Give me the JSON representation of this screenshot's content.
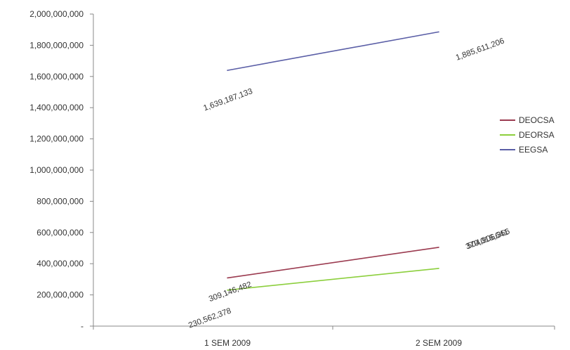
{
  "chart_data": {
    "type": "line",
    "categories": [
      "1 SEM 2009",
      "2 SEM 2009"
    ],
    "series": [
      {
        "name": "DEOCSA",
        "values": [
          309146482,
          504906356
        ],
        "labels": [
          "309,146,482",
          "504,906,356"
        ],
        "color": "#9b3b50"
      },
      {
        "name": "DEORSA",
        "values": [
          230562378,
          370016641
        ],
        "labels": [
          "230,562,378",
          "370,016,641"
        ],
        "color": "#8ccf3d"
      },
      {
        "name": "EEGSA",
        "values": [
          1639187133,
          1885611206
        ],
        "labels": [
          "1,639,187,133",
          "1,885,611,206"
        ],
        "color": "#5a5ea6"
      }
    ],
    "yticks": [
      {
        "value": 0,
        "label": "-"
      },
      {
        "value": 200000000,
        "label": "200,000,000"
      },
      {
        "value": 400000000,
        "label": "400,000,000"
      },
      {
        "value": 600000000,
        "label": "600,000,000"
      },
      {
        "value": 800000000,
        "label": "800,000,000"
      },
      {
        "value": 1000000000,
        "label": "1,000,000,000"
      },
      {
        "value": 1200000000,
        "label": "1,200,000,000"
      },
      {
        "value": 1400000000,
        "label": "1,400,000,000"
      },
      {
        "value": 1600000000,
        "label": "1,600,000,000"
      },
      {
        "value": 1800000000,
        "label": "1,800,000,000"
      },
      {
        "value": 2000000000,
        "label": "2,000,000,000"
      }
    ],
    "ylim": [
      0,
      2000000000
    ],
    "title": "",
    "xlabel": "",
    "ylabel": "",
    "grid": false,
    "legend": "right"
  }
}
